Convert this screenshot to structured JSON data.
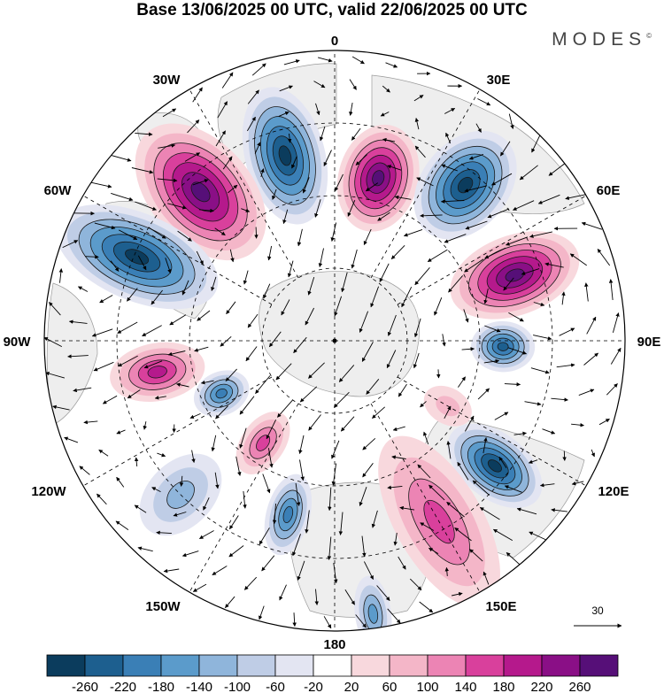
{
  "title": "Base 13/06/2025 00 UTC, valid 22/06/2025 00 UTC",
  "brand": "MODES",
  "brand_mark": "©",
  "longitude_labels": {
    "lon_0": "0",
    "lon_30e": "30E",
    "lon_60e": "60E",
    "lon_90e": "90E",
    "lon_120e": "120E",
    "lon_150e": "150E",
    "lon_180": "180",
    "lon_150w": "150W",
    "lon_120w": "120W",
    "lon_90w": "90W",
    "lon_60w": "60W",
    "lon_30w": "30W"
  },
  "reference_vector": {
    "value": "30"
  },
  "colorbar": {
    "colors": [
      "#0b3c5d",
      "#1d5f8f",
      "#3a7fb6",
      "#5b9bcb",
      "#8fb5db",
      "#bfcde6",
      "#e3e5f2",
      "#ffffff",
      "#f8d8dd",
      "#f4b6c8",
      "#ec84b4",
      "#d9409c",
      "#b5198c",
      "#8a0f86",
      "#560f78"
    ],
    "ticks": [
      "-260",
      "-220",
      "-180",
      "-140",
      "-100",
      "-60",
      "-20",
      "20",
      "60",
      "100",
      "140",
      "180",
      "220",
      "260"
    ]
  },
  "anomalies": [
    {
      "kind": "neg",
      "lon": -15,
      "r": 0.66,
      "ra": 0.22,
      "rb": 0.11,
      "strength": 1.0
    },
    {
      "kind": "pos",
      "lon": 15,
      "r": 0.58,
      "ra": 0.17,
      "rb": 0.11,
      "strength": 1.0
    },
    {
      "kind": "neg",
      "lon": 40,
      "r": 0.7,
      "ra": 0.19,
      "rb": 0.12,
      "strength": 1.0
    },
    {
      "kind": "pos",
      "lon": -42,
      "r": 0.69,
      "ra": 0.25,
      "rb": 0.14,
      "strength": 1.0
    },
    {
      "kind": "pos",
      "lon": 70,
      "r": 0.66,
      "ra": 0.21,
      "rb": 0.11,
      "strength": 1.0
    },
    {
      "kind": "neg",
      "lon": -67,
      "r": 0.74,
      "ra": 0.27,
      "rb": 0.12,
      "strength": 0.95
    },
    {
      "kind": "neg",
      "lon": 92,
      "r": 0.58,
      "ra": 0.1,
      "rb": 0.07,
      "strength": 0.9
    },
    {
      "kind": "pos",
      "lon": -100,
      "r": 0.62,
      "ra": 0.15,
      "rb": 0.08,
      "strength": 0.75
    },
    {
      "kind": "neg",
      "lon": -115,
      "r": 0.43,
      "ra": 0.09,
      "rb": 0.06,
      "strength": 0.65
    },
    {
      "kind": "pos",
      "lon": -145,
      "r": 0.43,
      "ra": 0.11,
      "rb": 0.06,
      "strength": 0.5
    },
    {
      "kind": "neg",
      "lon": -165,
      "r": 0.62,
      "ra": 0.13,
      "rb": 0.06,
      "strength": 0.7
    },
    {
      "kind": "neg",
      "lon": -135,
      "r": 0.75,
      "ra": 0.15,
      "rb": 0.09,
      "strength": 0.45
    },
    {
      "kind": "neg",
      "lon": 128,
      "r": 0.7,
      "ra": 0.17,
      "rb": 0.09,
      "strength": 1.0
    },
    {
      "kind": "pos",
      "lon": 150,
      "r": 0.72,
      "ra": 0.3,
      "rb": 0.12,
      "strength": 0.55
    },
    {
      "kind": "neg",
      "lon": 172,
      "r": 0.95,
      "ra": 0.12,
      "rb": 0.05,
      "strength": 0.5
    },
    {
      "kind": "pos",
      "lon": 120,
      "r": 0.45,
      "ra": 0.08,
      "rb": 0.05,
      "strength": 0.35
    }
  ]
}
